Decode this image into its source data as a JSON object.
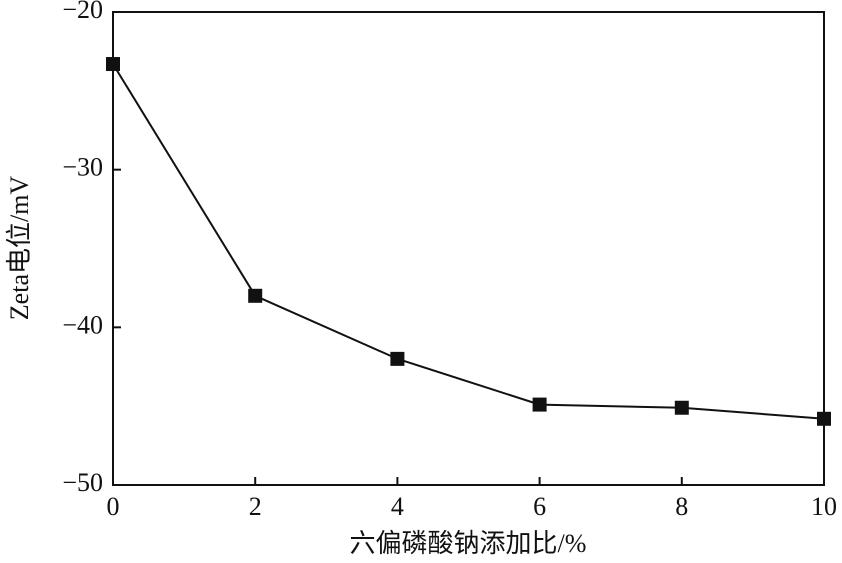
{
  "chart_data": {
    "type": "line",
    "x_label": "六偏磷酸钠添加比/%",
    "y_label": "Zeta电位/mV",
    "x": [
      0,
      2,
      4,
      6,
      8,
      10
    ],
    "series": [
      {
        "color": "#111111",
        "values": [
          -23.3,
          -38,
          -42,
          -44.9,
          -45.1,
          -45.8
        ]
      }
    ],
    "xlim": [
      0,
      10
    ],
    "xticks": [
      0,
      2,
      4,
      6,
      8,
      10
    ],
    "ylim": [
      -50,
      -20
    ],
    "yticks": [
      {
        "value": -20,
        "label": "−20"
      },
      {
        "value": -30,
        "label": "−30"
      },
      {
        "value": -40,
        "label": "−40"
      },
      {
        "value": -50,
        "label": "−50"
      }
    ],
    "grid": false
  }
}
